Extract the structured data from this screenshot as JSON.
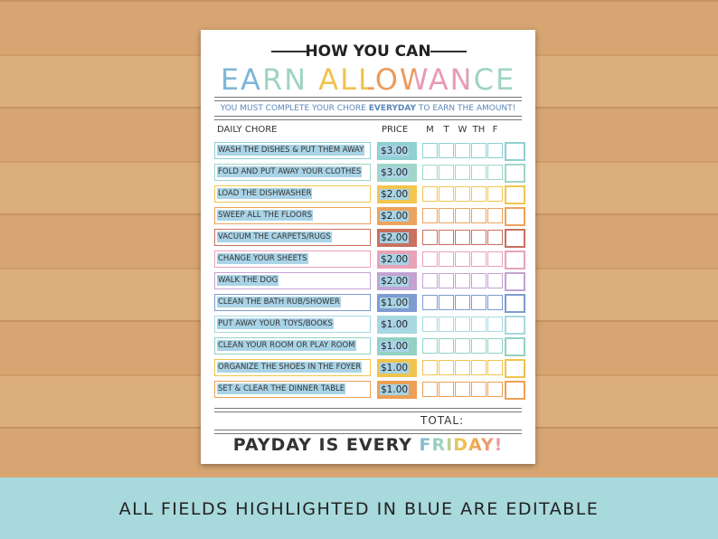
{
  "header": {
    "kicker": "HOW YOU CAN",
    "title": "EARN ALLOWANCE",
    "instruction": {
      "before": "YOU MUST COMPLETE YOUR CHORE ",
      "emphasis": "EVERYDAY",
      "after": " TO EARN THE AMOUNT!"
    }
  },
  "table": {
    "columns": {
      "chore": "DAILY CHORE",
      "price": "PRICE",
      "days": [
        "M",
        "T",
        "W",
        "TH",
        "F"
      ]
    },
    "rows": [
      {
        "chore": "WASH THE DISHES & PUT THEM AWAY",
        "price": "$3.00",
        "color": "#8fd0d3"
      },
      {
        "chore": "FOLD AND PUT AWAY YOUR CLOTHES",
        "price": "$3.00",
        "color": "#9fd6c9"
      },
      {
        "chore": "LOAD THE DISHWASHER",
        "price": "$2.00",
        "color": "#f3c64f"
      },
      {
        "chore": "SWEEP ALL THE FLOORS",
        "price": "$2.00",
        "color": "#eea35c"
      },
      {
        "chore": "VACUUM THE CARPETS/RUGS",
        "price": "$2.00",
        "color": "#c9705e"
      },
      {
        "chore": "CHANGE YOUR SHEETS",
        "price": "$2.00",
        "color": "#eaa2b6"
      },
      {
        "chore": "WALK THE DOG",
        "price": "$2.00",
        "color": "#c3a2d2"
      },
      {
        "chore": "CLEAN THE BATH RUB/SHOWER",
        "price": "$1.00",
        "color": "#7d9ccf"
      },
      {
        "chore": "PUT AWAY YOUR TOYS/BOOKS",
        "price": "$1.00",
        "color": "#a6d9e0"
      },
      {
        "chore": "CLEAN YOUR ROOM OR PLAY ROOM",
        "price": "$1.00",
        "color": "#92d1c4"
      },
      {
        "chore": "ORGANIZE THE SHOES IN THE FOYER",
        "price": "$1.00",
        "color": "#f0c44c"
      },
      {
        "chore": "SET & CLEAR THE DINNER TABLE",
        "price": "$1.00",
        "color": "#eda055"
      }
    ],
    "total_label": "TOTAL:"
  },
  "footer": {
    "before": "PAYDAY IS EVERY ",
    "highlight": "FRIDAY!"
  },
  "banner": "ALL FIELDS HIGHLIGHTED IN BLUE ARE EDITABLE"
}
